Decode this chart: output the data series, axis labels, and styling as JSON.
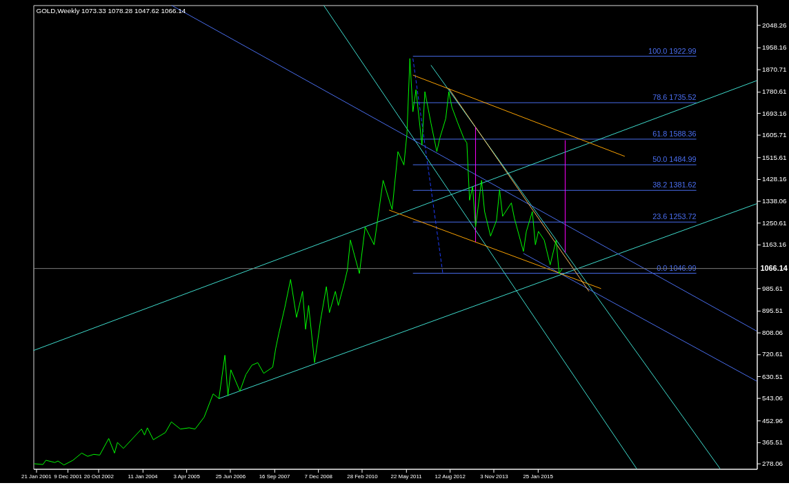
{
  "chart_data": {
    "type": "line",
    "title": "GOLD,Weekly 1073.33 1078.28 1047.62 1066.14",
    "xlim": [
      "2000-12-25",
      "2021-03-10"
    ],
    "ylim": [
      257,
      2129
    ],
    "xticks": [
      {
        "value": "2001-01-21",
        "label": "21 Jan 2001"
      },
      {
        "value": "2001-12-09",
        "label": "9 Dec 2001"
      },
      {
        "value": "2002-10-20",
        "label": "20 Oct 2002"
      },
      {
        "value": "2004-01-11",
        "label": "11 Jan 2004"
      },
      {
        "value": "2005-04-03",
        "label": "3 Apr 2005"
      },
      {
        "value": "2006-06-25",
        "label": "25 Jun 2006"
      },
      {
        "value": "2007-09-16",
        "label": "16 Sep 2007"
      },
      {
        "value": "2008-12-07",
        "label": "7 Dec 2008"
      },
      {
        "value": "2010-02-28",
        "label": "28 Feb 2010"
      },
      {
        "value": "2011-05-22",
        "label": "22 May 2011"
      },
      {
        "value": "2012-08-12",
        "label": "12 Aug 2012"
      },
      {
        "value": "2013-11-03",
        "label": "3 Nov 2013"
      },
      {
        "value": "2015-01-25",
        "label": "25 Jan 2015"
      }
    ],
    "yticks": [
      278.06,
      365.51,
      452.96,
      543.06,
      630.51,
      720.61,
      808.06,
      895.51,
      985.61,
      1163.16,
      1250.61,
      1338.06,
      1428.16,
      1515.61,
      1605.71,
      1693.16,
      1780.61,
      1870.71,
      1958.16,
      2048.26
    ],
    "grid": false,
    "marker": "none",
    "ref_lines": [
      {
        "axis": "y",
        "value": 1066.14,
        "label": "1066.14",
        "color": "#808080"
      }
    ],
    "series": [
      {
        "color": "#00ff00",
        "x": [
          "2001-01",
          "2001-04",
          "2001-05",
          "2001-08",
          "2001-09",
          "2001-11",
          "2002-02",
          "2002-05",
          "2002-07",
          "2002-09",
          "2002-11",
          "2003-02",
          "2003-04",
          "2003-05",
          "2003-07",
          "2004-01",
          "2004-02",
          "2004-03",
          "2004-05",
          "2004-09",
          "2004-11",
          "2005-02",
          "2005-05",
          "2005-07",
          "2005-10",
          "2006-01",
          "2006-03",
          "2006-05",
          "2006-06",
          "2006-07",
          "2006-10",
          "2006-12",
          "2007-02",
          "2007-04",
          "2007-06",
          "2007-09",
          "2007-10",
          "2007-11",
          "2008-01",
          "2008-03",
          "2008-05",
          "2008-07",
          "2008-08",
          "2008-09",
          "2008-11",
          "2009-01",
          "2009-03",
          "2009-04",
          "2009-06",
          "2009-07",
          "2009-09",
          "2009-10",
          "2009-11",
          "2010-02",
          "2010-04",
          "2010-07",
          "2010-10",
          "2011-01",
          "2011-03",
          "2011-05",
          "2011-06",
          "2011-07",
          "2011-08",
          "2011-09",
          "2011-11",
          "2011-12",
          "2012-02",
          "2012-04",
          "2012-05",
          "2012-07",
          "2012-08",
          "2012-09",
          "2012-11",
          "2013-01",
          "2013-02",
          "2013-03",
          "2013-04",
          "2013-05",
          "2013-07",
          "2013-08",
          "2013-10",
          "2013-12",
          "2014-01",
          "2014-02",
          "2014-05",
          "2014-06",
          "2014-09",
          "2014-10",
          "2014-12",
          "2015-01",
          "2015-02",
          "2015-04",
          "2015-06",
          "2015-08",
          "2015-09",
          "2015-10"
        ],
        "values": [
          278,
          275,
          292,
          283,
          289,
          273,
          292,
          321,
          308,
          316,
          313,
          380,
          321,
          364,
          340,
          418,
          394,
          423,
          375,
          404,
          447,
          418,
          423,
          418,
          466,
          560,
          541,
          716,
          552,
          657,
          571,
          638,
          676,
          686,
          643,
          668,
          743,
          802,
          907,
          1022,
          869,
          974,
          821,
          917,
          686,
          858,
          993,
          888,
          974,
          917,
          1009,
          1060,
          1181,
          1046,
          1234,
          1162,
          1422,
          1304,
          1538,
          1484,
          1610,
          1914,
          1699,
          1788,
          1565,
          1780,
          1653,
          1538,
          1592,
          1672,
          1780,
          1718,
          1653,
          1592,
          1573,
          1342,
          1396,
          1234,
          1422,
          1296,
          1197,
          1261,
          1385,
          1277,
          1331,
          1269,
          1135,
          1216,
          1296,
          1162,
          1216,
          1181,
          1081,
          1181,
          1046,
          1066
        ]
      },
      {
        "type": "line",
        "name": "100.0 1922.99",
        "color": "#4a6ef0",
        "x": [
          "2011-08",
          "2019-07"
        ],
        "values": [
          1922.99,
          1922.99
        ]
      },
      {
        "type": "line",
        "name": "78.6 1735.52",
        "color": "#4a6ef0",
        "x": [
          "2011-08",
          "2019-07"
        ],
        "values": [
          1735.52,
          1735.52
        ]
      },
      {
        "type": "line",
        "name": "61.8 1588.36",
        "color": "#4a6ef0",
        "x": [
          "2011-08",
          "2019-07"
        ],
        "values": [
          1588.36,
          1588.36
        ]
      },
      {
        "type": "line",
        "name": "50.0 1484.99",
        "color": "#4a6ef0",
        "x": [
          "2011-08",
          "2019-07"
        ],
        "values": [
          1484.99,
          1484.99
        ]
      },
      {
        "type": "line",
        "name": "38.2 1381.62",
        "color": "#4a6ef0",
        "x": [
          "2011-08",
          "2019-07"
        ],
        "values": [
          1381.62,
          1381.62
        ]
      },
      {
        "type": "line",
        "name": "23.6 1253.72",
        "color": "#4a6ef0",
        "x": [
          "2011-08",
          "2019-07"
        ],
        "values": [
          1253.72,
          1253.72
        ]
      },
      {
        "type": "line",
        "name": "0.0 1046.99",
        "color": "#4a6ef0",
        "x": [
          "2011-08",
          "2019-07"
        ],
        "values": [
          1046.99,
          1046.99
        ]
      },
      {
        "type": "line",
        "color": "#40e0d0",
        "x": [
          "2000-12-25",
          "2021-03-10"
        ],
        "values": [
          735,
          1825
        ]
      },
      {
        "type": "line",
        "color": "#40e0d0",
        "x": [
          "2006-03",
          "2021-03-10"
        ],
        "values": [
          541,
          1328
        ]
      },
      {
        "type": "line",
        "color": "#40e0d0",
        "x": [
          "2009-02",
          "2017-11"
        ],
        "values": [
          2129,
          257
        ]
      },
      {
        "type": "line",
        "color": "#40e0d0",
        "x": [
          "2012-02",
          "2020-03"
        ],
        "values": [
          1887,
          257
        ]
      },
      {
        "type": "line",
        "color": "#4a6ef0",
        "x": [
          "2004-11",
          "2021-03-10"
        ],
        "values": [
          2129,
          813
        ]
      },
      {
        "type": "line",
        "color": "#4a6ef0",
        "x": [
          "2014-09",
          "2021-03-10"
        ],
        "values": [
          1127,
          611
        ]
      },
      {
        "type": "line",
        "color": "#1f3fff",
        "line_style": "dashed",
        "x": [
          "2011-08",
          "2012-06"
        ],
        "values": [
          1914,
          1046
        ]
      },
      {
        "type": "line",
        "color": "#ffa500",
        "x": [
          "2011-08",
          "2017-07"
        ],
        "values": [
          1847,
          1519
        ]
      },
      {
        "type": "line",
        "color": "#ffa500",
        "x": [
          "2010-12",
          "2016-11"
        ],
        "values": [
          1302,
          985
        ]
      },
      {
        "type": "line",
        "color": "#ffc060",
        "x": [
          "2012-08",
          "2016-07"
        ],
        "values": [
          1793,
          974
        ]
      },
      {
        "type": "line",
        "color": "#ff00ff",
        "x": [
          "2013-05",
          "2013-05"
        ],
        "values": [
          1637,
          1173
        ]
      },
      {
        "type": "line",
        "color": "#ff00ff",
        "x": [
          "2015-11",
          "2015-11"
        ],
        "values": [
          1584,
          1130
        ]
      }
    ]
  }
}
